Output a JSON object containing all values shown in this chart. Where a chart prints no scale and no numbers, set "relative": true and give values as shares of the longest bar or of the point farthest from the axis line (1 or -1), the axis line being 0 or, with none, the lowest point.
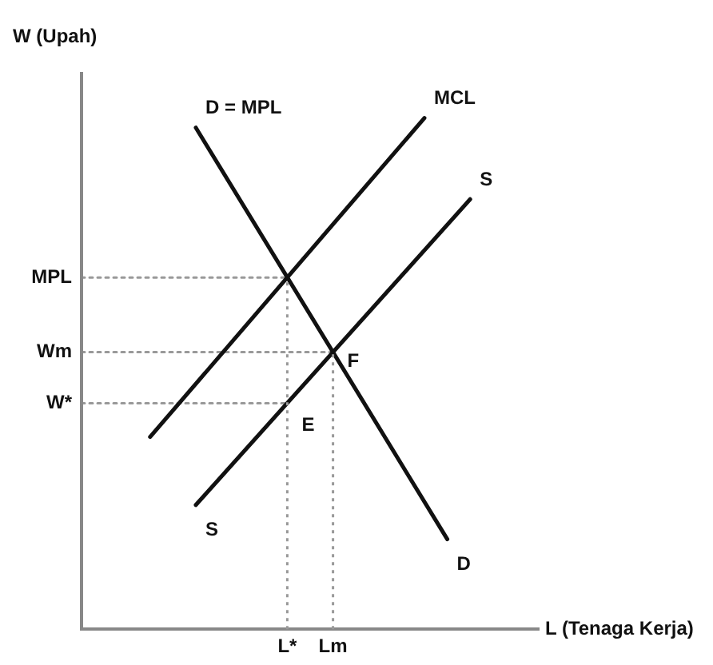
{
  "chart_data": {
    "type": "line",
    "relative": true,
    "xlabel": "L (Tenaga Kerja)",
    "ylabel": "W (Upah)",
    "legend": false,
    "marker": "none",
    "categories": [
      null,
      null,
      null,
      null,
      null,
      null,
      null,
      null,
      null,
      "L*",
      null,
      "Lm",
      null,
      null,
      null,
      null,
      null,
      null,
      null,
      null,
      null
    ],
    "series": [
      {
        "name": "D = MPL",
        "color": "#111111",
        "values": [
          null,
          null,
          null,
          null,
          null,
          0.981,
          null,
          null,
          null,
          null,
          null,
          null,
          null,
          null,
          null,
          null,
          0.176,
          null,
          null,
          null,
          null
        ]
      },
      {
        "name": "MCL",
        "color": "#111111",
        "values": [
          null,
          null,
          null,
          0.376,
          null,
          null,
          null,
          null,
          null,
          null,
          null,
          null,
          null,
          null,
          null,
          1,
          null,
          null,
          null,
          null,
          null
        ]
      },
      {
        "name": "S",
        "color": "#111111",
        "values": [
          null,
          null,
          null,
          null,
          null,
          0.243,
          null,
          null,
          null,
          null,
          null,
          null,
          null,
          null,
          null,
          null,
          null,
          0.841,
          null,
          null,
          null
        ]
      },
      {
        "name": "MPL",
        "color": "#999999",
        "line_style": "dotted",
        "values": [
          0.688,
          null,
          null,
          null,
          null,
          null,
          null,
          null,
          null,
          0.688,
          null,
          null,
          null,
          null,
          null,
          null,
          null,
          null,
          null,
          null,
          null
        ]
      },
      {
        "name": "Wm",
        "color": "#999999",
        "line_style": "dotted",
        "values": [
          0.542,
          null,
          null,
          null,
          null,
          null,
          null,
          null,
          null,
          null,
          null,
          0.542,
          null,
          null,
          null,
          null,
          null,
          null,
          null,
          null,
          null
        ]
      },
      {
        "name": "W*",
        "color": "#999999",
        "line_style": "dotted",
        "values": [
          0.442,
          null,
          null,
          null,
          null,
          null,
          null,
          null,
          null,
          0.442,
          null,
          null,
          null,
          null,
          null,
          null,
          null,
          null,
          null,
          null,
          null
        ]
      }
    ],
    "ref_lines": [
      {
        "axis": "x",
        "value": "L*",
        "color": "#999999",
        "line_style": "dotted"
      },
      {
        "axis": "x",
        "value": "Lm",
        "color": "#999999",
        "line_style": "dotted"
      }
    ],
    "annotations": [
      "D",
      "S",
      {
        "text": "E",
        "x": "L*",
        "y": 0.442
      },
      {
        "text": "F",
        "x": "Lm",
        "y": 0.542
      }
    ]
  }
}
